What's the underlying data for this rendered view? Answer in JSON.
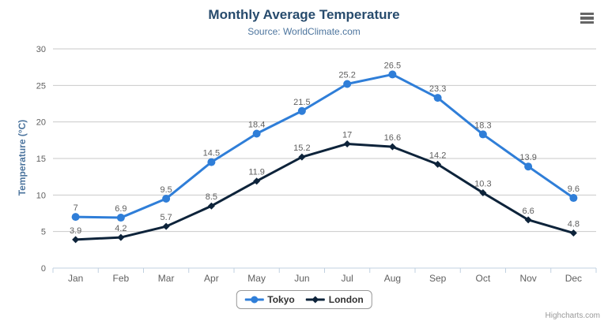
{
  "chart_data": {
    "type": "line",
    "title": "Monthly Average Temperature",
    "subtitle": "Source: WorldClimate.com",
    "categories": [
      "Jan",
      "Feb",
      "Mar",
      "Apr",
      "May",
      "Jun",
      "Jul",
      "Aug",
      "Sep",
      "Oct",
      "Nov",
      "Dec"
    ],
    "series": [
      {
        "name": "Tokyo",
        "color": "#2f7ed8",
        "marker": "circle",
        "values": [
          7,
          6.9,
          9.5,
          14.5,
          18.4,
          21.5,
          25.2,
          26.5,
          23.3,
          18.3,
          13.9,
          9.6
        ]
      },
      {
        "name": "London",
        "color": "#0d233a",
        "marker": "diamond",
        "values": [
          3.9,
          4.2,
          5.7,
          8.5,
          11.9,
          15.2,
          17,
          16.6,
          14.2,
          10.3,
          6.6,
          4.8
        ]
      }
    ],
    "xlabel": "",
    "ylabel": "Temperature (°C)",
    "ylim": [
      0,
      30
    ],
    "yticks": [
      0,
      5,
      10,
      15,
      20,
      25,
      30
    ],
    "grid": true,
    "data_labels": true,
    "legend_position": "bottom"
  },
  "credits": {
    "label": "Highcharts.com"
  },
  "colors": {
    "title": "#274b6d",
    "subtitle": "#4d759e",
    "axis_label": "#606060",
    "data_label": "#606060",
    "gridline": "#c9c9c9",
    "axis_line": "#c0d0e0",
    "legend_text": "#333333",
    "credits": "#999999",
    "menu_icon": "#666666",
    "background": "#ffffff"
  }
}
